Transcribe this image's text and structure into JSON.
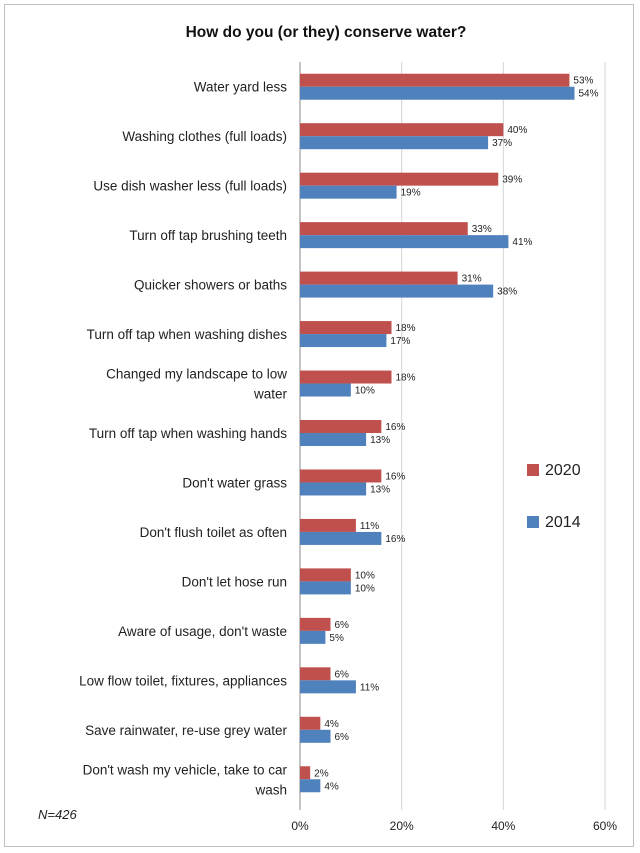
{
  "chart_data": {
    "type": "bar",
    "orientation": "horizontal",
    "title": "How do you (or they) conserve water?",
    "note": "N=426",
    "categories": [
      "Water yard less",
      "Washing clothes (full loads)",
      "Use dish washer less (full loads)",
      "Turn off tap brushing teeth",
      "Quicker showers or baths",
      "Turn off tap when washing dishes",
      "Changed my landscape to low water",
      "Turn off tap when washing hands",
      "Don't water grass",
      "Don't flush toilet as often",
      "Don't let hose run",
      "Aware of usage, don't waste",
      "Low flow toilet, fixtures, appliances",
      "Save rainwater, re-use grey water",
      "Don't wash my vehicle, take to car wash"
    ],
    "category_lines": [
      [
        "Water yard less"
      ],
      [
        "Washing clothes (full loads)"
      ],
      [
        "Use dish washer less (full loads)"
      ],
      [
        "Turn off tap brushing teeth"
      ],
      [
        "Quicker showers or baths"
      ],
      [
        "Turn off tap when washing dishes"
      ],
      [
        "Changed my landscape to low",
        "water"
      ],
      [
        "Turn off tap when washing hands"
      ],
      [
        "Don't water grass"
      ],
      [
        "Don't flush toilet as often"
      ],
      [
        "Don't let hose run"
      ],
      [
        "Aware of usage, don't waste"
      ],
      [
        "Low flow toilet, fixtures, appliances"
      ],
      [
        "Save rainwater, re-use grey water"
      ],
      [
        "Don't wash my vehicle, take to car",
        "wash"
      ]
    ],
    "series": [
      {
        "name": "2020",
        "color": "#c0504d",
        "values": [
          53,
          40,
          39,
          33,
          31,
          18,
          18,
          16,
          16,
          11,
          10,
          6,
          6,
          4,
          2
        ]
      },
      {
        "name": "2014",
        "color": "#4f81bd",
        "values": [
          54,
          37,
          19,
          41,
          38,
          17,
          10,
          13,
          13,
          16,
          10,
          5,
          11,
          6,
          4
        ]
      }
    ],
    "xlim": [
      0,
      60
    ],
    "xticks": [
      0,
      20,
      40,
      60
    ],
    "tick_format": "{v}%",
    "value_format": "{v}%",
    "grid": "vertical",
    "legend_position": "right"
  }
}
